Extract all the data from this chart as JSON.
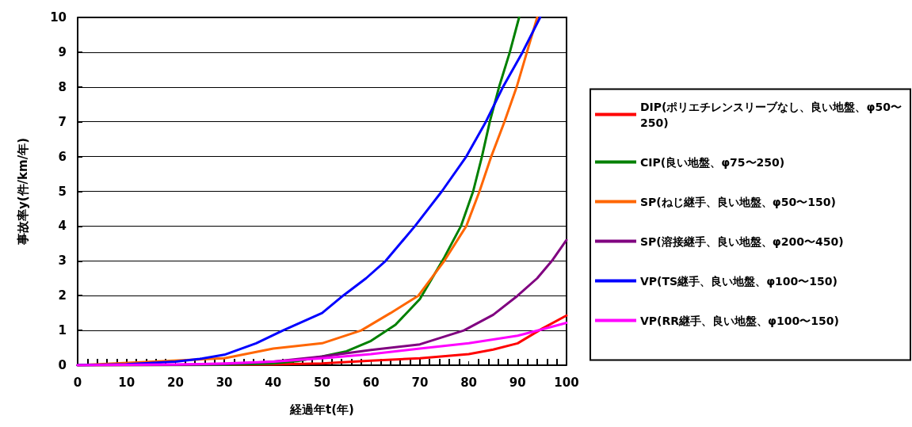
{
  "chart_data": {
    "type": "line",
    "xlabel": "経過年t(年)",
    "ylabel": "事故率y(件/km/年)",
    "xlim": [
      0,
      100
    ],
    "ylim": [
      0,
      10
    ],
    "xticks": [
      0,
      10,
      20,
      30,
      40,
      50,
      60,
      70,
      80,
      90,
      100
    ],
    "yticks": [
      0,
      1,
      2,
      3,
      4,
      5,
      6,
      7,
      8,
      9,
      10
    ],
    "grid": "y",
    "legend": "right",
    "marker": "none",
    "line_style": "solid",
    "series": [
      {
        "name": "DIP(ポリエチレンスリーブなし、良い地盤、φ50〜250)",
        "color": "#ff0000",
        "x": [
          0,
          40,
          50,
          60,
          70,
          80,
          85,
          90,
          95,
          100
        ],
        "values": [
          0,
          0.02,
          0.05,
          0.13,
          0.2,
          0.32,
          0.45,
          0.63,
          1.05,
          1.43
        ]
      },
      {
        "name": "CIP(良い地盤、φ75〜250)",
        "color": "#008000",
        "x": [
          0,
          30,
          40,
          45,
          50,
          55,
          60,
          65,
          70,
          75,
          78.4,
          80.9,
          82.7,
          84.3,
          86.2,
          88.4,
          90.3
        ],
        "values": [
          0,
          0.01,
          0.05,
          0.12,
          0.25,
          0.4,
          0.7,
          1.16,
          1.9,
          3.1,
          4,
          5,
          6,
          7,
          8,
          9,
          10
        ]
      },
      {
        "name": "SP(ねじ継手、良い地盤、φ50〜150)",
        "color": "#ff6600",
        "x": [
          0,
          30,
          40,
          50,
          58,
          64,
          69.7,
          75,
          79.5,
          82.2,
          84.6,
          87.3,
          89.8,
          91.9,
          94
        ],
        "values": [
          0,
          0.2,
          0.48,
          0.63,
          1,
          1.5,
          2,
          3,
          4,
          5,
          6,
          7,
          8,
          9,
          10
        ]
      },
      {
        "name": "SP(溶接継手、良い地盤、φ200〜450)",
        "color": "#800080",
        "x": [
          0,
          20,
          30,
          40,
          50,
          60,
          70,
          79,
          85,
          90,
          94,
          97,
          100
        ],
        "values": [
          0,
          0.01,
          0.03,
          0.1,
          0.25,
          0.44,
          0.6,
          1,
          1.45,
          2,
          2.5,
          3,
          3.6
        ]
      },
      {
        "name": "VP(TS継手、良い地盤、φ100〜150)",
        "color": "#0000ff",
        "x": [
          0,
          10,
          20,
          25,
          30,
          36.5,
          42,
          50,
          54.3,
          59,
          63,
          69,
          74.5,
          79.5,
          83.5,
          87,
          91,
          94.6
        ],
        "values": [
          0,
          0.03,
          0.1,
          0.18,
          0.3,
          0.63,
          1,
          1.5,
          2,
          2.5,
          3,
          4,
          5,
          6,
          7,
          8,
          9,
          10
        ]
      },
      {
        "name": "VP(RR継手、良い地盤、φ100〜150)",
        "color": "#ff00ff",
        "x": [
          0,
          20,
          30,
          40,
          50,
          60,
          70,
          80,
          90,
          95,
          100
        ],
        "values": [
          0,
          0.02,
          0.05,
          0.1,
          0.2,
          0.32,
          0.48,
          0.63,
          0.85,
          1.03,
          1.22
        ]
      }
    ]
  }
}
